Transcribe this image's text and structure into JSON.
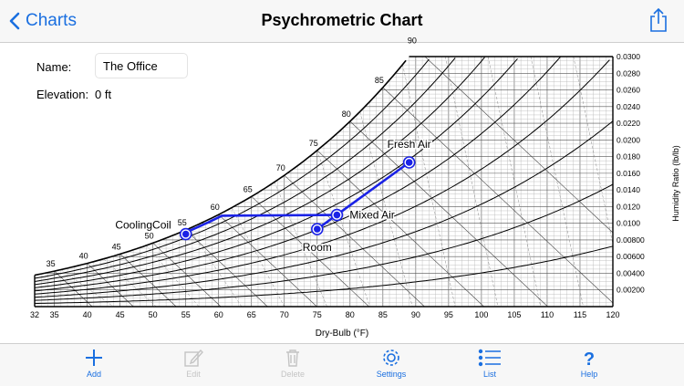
{
  "nav": {
    "back_label": "Charts",
    "title": "Psychrometric Chart"
  },
  "form": {
    "name_label": "Name:",
    "name_value": "The Office",
    "elevation_label": "Elevation:",
    "elevation_value": "0 ft"
  },
  "toolbar": {
    "add": "Add",
    "edit": "Edit",
    "delete": "Delete",
    "settings": "Settings",
    "list": "List",
    "help": "Help"
  },
  "colors": {
    "accent": "#1a6fe0",
    "process": "#1a22e6",
    "disabled": "#c4c4c4"
  },
  "chart_data": {
    "type": "psychrometric",
    "xlabel": "Dry-Bulb (°F)",
    "ylabel": "Humidity Ratio (lb/lb)",
    "xlim": [
      32,
      120
    ],
    "ylim": [
      0,
      0.03
    ],
    "x_ticks": [
      32,
      35,
      40,
      45,
      50,
      55,
      60,
      65,
      70,
      75,
      80,
      85,
      90,
      95,
      100,
      105,
      110,
      115,
      120
    ],
    "y_ticks": [
      0.002,
      0.004,
      0.006,
      0.008,
      0.01,
      0.012,
      0.014,
      0.016,
      0.018,
      0.02,
      0.022,
      0.024,
      0.026,
      0.028,
      0.03
    ],
    "y_tick_labels": [
      "0.00200",
      "0.00400",
      "0.00600",
      "0.00800",
      "0.0100",
      "0.0120",
      "0.0140",
      "0.0160",
      "0.0180",
      "0.0200",
      "0.0220",
      "0.0240",
      "0.0260",
      "0.0280",
      "0.0300"
    ],
    "wet_bulb_labels": [
      {
        "t": 35,
        "label": "35"
      },
      {
        "t": 40,
        "label": "40"
      },
      {
        "t": 45,
        "label": "45"
      },
      {
        "t": 50,
        "label": "50"
      },
      {
        "t": 55,
        "label": "55"
      },
      {
        "t": 60,
        "label": "60"
      },
      {
        "t": 65,
        "label": "65"
      },
      {
        "t": 70,
        "label": "70"
      },
      {
        "t": 75,
        "label": "75"
      },
      {
        "t": 80,
        "label": "80"
      },
      {
        "t": 85,
        "label": "85"
      },
      {
        "t": 90,
        "label": "90"
      }
    ],
    "rh_curves": [
      0.1,
      0.2,
      0.3,
      0.4,
      0.5,
      0.6,
      0.7,
      0.8,
      0.9
    ],
    "points": [
      {
        "name": "Fresh Air",
        "db": 89,
        "w": 0.0173
      },
      {
        "name": "Mixed Air",
        "db": 78,
        "w": 0.011
      },
      {
        "name": "Room",
        "db": 75,
        "w": 0.0093
      },
      {
        "name": "CoolingCoil",
        "db": 55,
        "w": 0.0087
      }
    ]
  }
}
